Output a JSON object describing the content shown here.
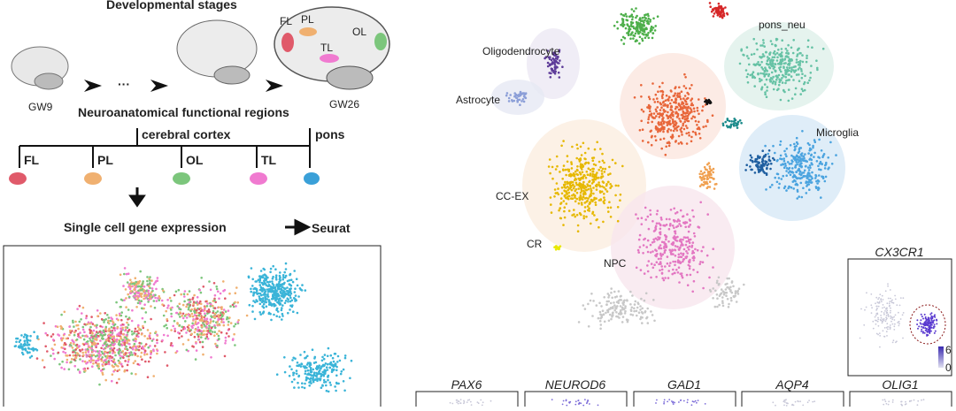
{
  "left": {
    "title": "Developmental stages",
    "stage_early": "GW9",
    "stage_late": "GW26",
    "brain_labels": [
      "FL",
      "PL",
      "TL",
      "OL"
    ],
    "regions_title": "Neuroanatomical functional regions",
    "cortex_label": "cerebral cortex",
    "regions": [
      "FL",
      "PL",
      "OL",
      "TL",
      "pons"
    ],
    "pipeline_step": "Single cell gene expression",
    "pipeline_tool": "Seurat"
  },
  "tsne": {
    "clusters": [
      "pons_neu",
      "Oligodendrocyte",
      "Astrocyte",
      "Microglia",
      "CC-EX",
      "CR",
      "NPC"
    ]
  },
  "feature_plots": {
    "main": {
      "gene": "CX3CR1",
      "scale_max": "6",
      "scale_min": "0"
    },
    "genes": [
      "PAX6",
      "NEUROD6",
      "GAD1",
      "AQP4",
      "OLIG1"
    ]
  }
}
